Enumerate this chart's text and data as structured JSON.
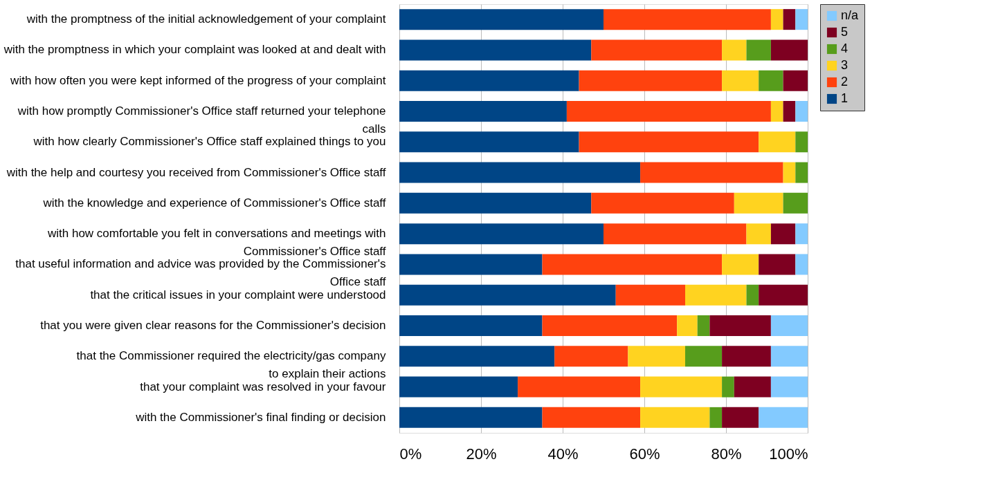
{
  "chart_data": {
    "type": "bar",
    "orientation": "horizontal",
    "stacked": true,
    "categories": [
      "with the promptness of the initial acknowledgement of your complaint",
      "with the promptness in which your complaint was looked at and dealt with",
      "with how often you were kept informed of the progress of your complaint",
      "with how promptly Commissioner's Office staff returned your telephone\ncalls",
      "with how clearly Commissioner's Office staff explained things to you",
      "with the help and courtesy you received from Commissioner's Office staff",
      "with the knowledge and experience of Commissioner's Office staff",
      "with how comfortable you felt in conversations and meetings with\nCommissioner's Office staff",
      "that useful information and advice was provided by the Commissioner's\nOffice staff",
      "that the critical issues in your complaint were understood",
      "that you were given clear reasons for the Commissioner's decision",
      "that the Commissioner required the electricity/gas company\nto explain their actions",
      "that your complaint was resolved in your favour",
      "with the Commissioner's final finding or decision"
    ],
    "series": [
      {
        "name": "1",
        "color": "#004586",
        "values": [
          50,
          47,
          44,
          41,
          44,
          59,
          47,
          50,
          35,
          53,
          35,
          38,
          29,
          35
        ]
      },
      {
        "name": "2",
        "color": "#ff420e",
        "values": [
          41,
          32,
          35,
          50,
          44,
          35,
          35,
          35,
          44,
          17,
          33,
          18,
          30,
          24
        ]
      },
      {
        "name": "3",
        "color": "#ffd320",
        "values": [
          3,
          6,
          9,
          3,
          9,
          3,
          12,
          6,
          9,
          15,
          5,
          14,
          20,
          17
        ]
      },
      {
        "name": "4",
        "color": "#579d1c",
        "values": [
          0,
          6,
          6,
          0,
          3,
          3,
          6,
          0,
          0,
          3,
          3,
          9,
          3,
          3
        ]
      },
      {
        "name": "5",
        "color": "#7e0021",
        "values": [
          3,
          9,
          6,
          3,
          0,
          0,
          0,
          6,
          9,
          12,
          15,
          12,
          9,
          9
        ]
      },
      {
        "name": "n/a",
        "color": "#83caff",
        "values": [
          3,
          0,
          0,
          3,
          0,
          0,
          0,
          3,
          3,
          0,
          9,
          9,
          9,
          12
        ]
      }
    ],
    "xlim": [
      0,
      100
    ],
    "xticks": [
      {
        "value": 0,
        "label": "0%"
      },
      {
        "value": 20,
        "label": "20%"
      },
      {
        "value": 40,
        "label": "40%"
      },
      {
        "value": 60,
        "label": "60%"
      },
      {
        "value": 80,
        "label": "80%"
      },
      {
        "value": 100,
        "label": "100%"
      }
    ],
    "grid": "x",
    "legend": "right"
  }
}
